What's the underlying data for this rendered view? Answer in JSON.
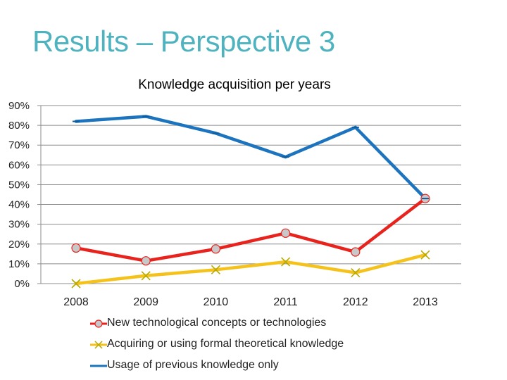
{
  "slide": {
    "title": "Results – Perspective 3"
  },
  "chart_data": {
    "type": "line",
    "title": "Knowledge acquisition per years",
    "categories": [
      "2008",
      "2009",
      "2010",
      "2011",
      "2012",
      "2013"
    ],
    "ylim": [
      0,
      90
    ],
    "yticks": [
      0,
      10,
      20,
      30,
      40,
      50,
      60,
      70,
      80,
      90
    ],
    "ytick_labels": [
      "0%",
      "10%",
      "20%",
      "30%",
      "40%",
      "50%",
      "60%",
      "70%",
      "80%",
      "90%"
    ],
    "grid": true,
    "legend_position": "bottom",
    "series": [
      {
        "name": "New technological concepts or technologies",
        "values": [
          18,
          11.5,
          17.5,
          25.5,
          16,
          43
        ],
        "color": "#E8231E",
        "marker": "circle"
      },
      {
        "name": "Acquiring or using formal theoretical knowledge",
        "values": [
          0,
          4,
          7,
          11,
          5.5,
          14.5
        ],
        "color": "#F5C21B",
        "marker": "x"
      },
      {
        "name": "Usage of previous knowledge only",
        "values": [
          82,
          84.5,
          76,
          64,
          79,
          43
        ],
        "color": "#1C73BE",
        "marker": "dash"
      }
    ]
  }
}
